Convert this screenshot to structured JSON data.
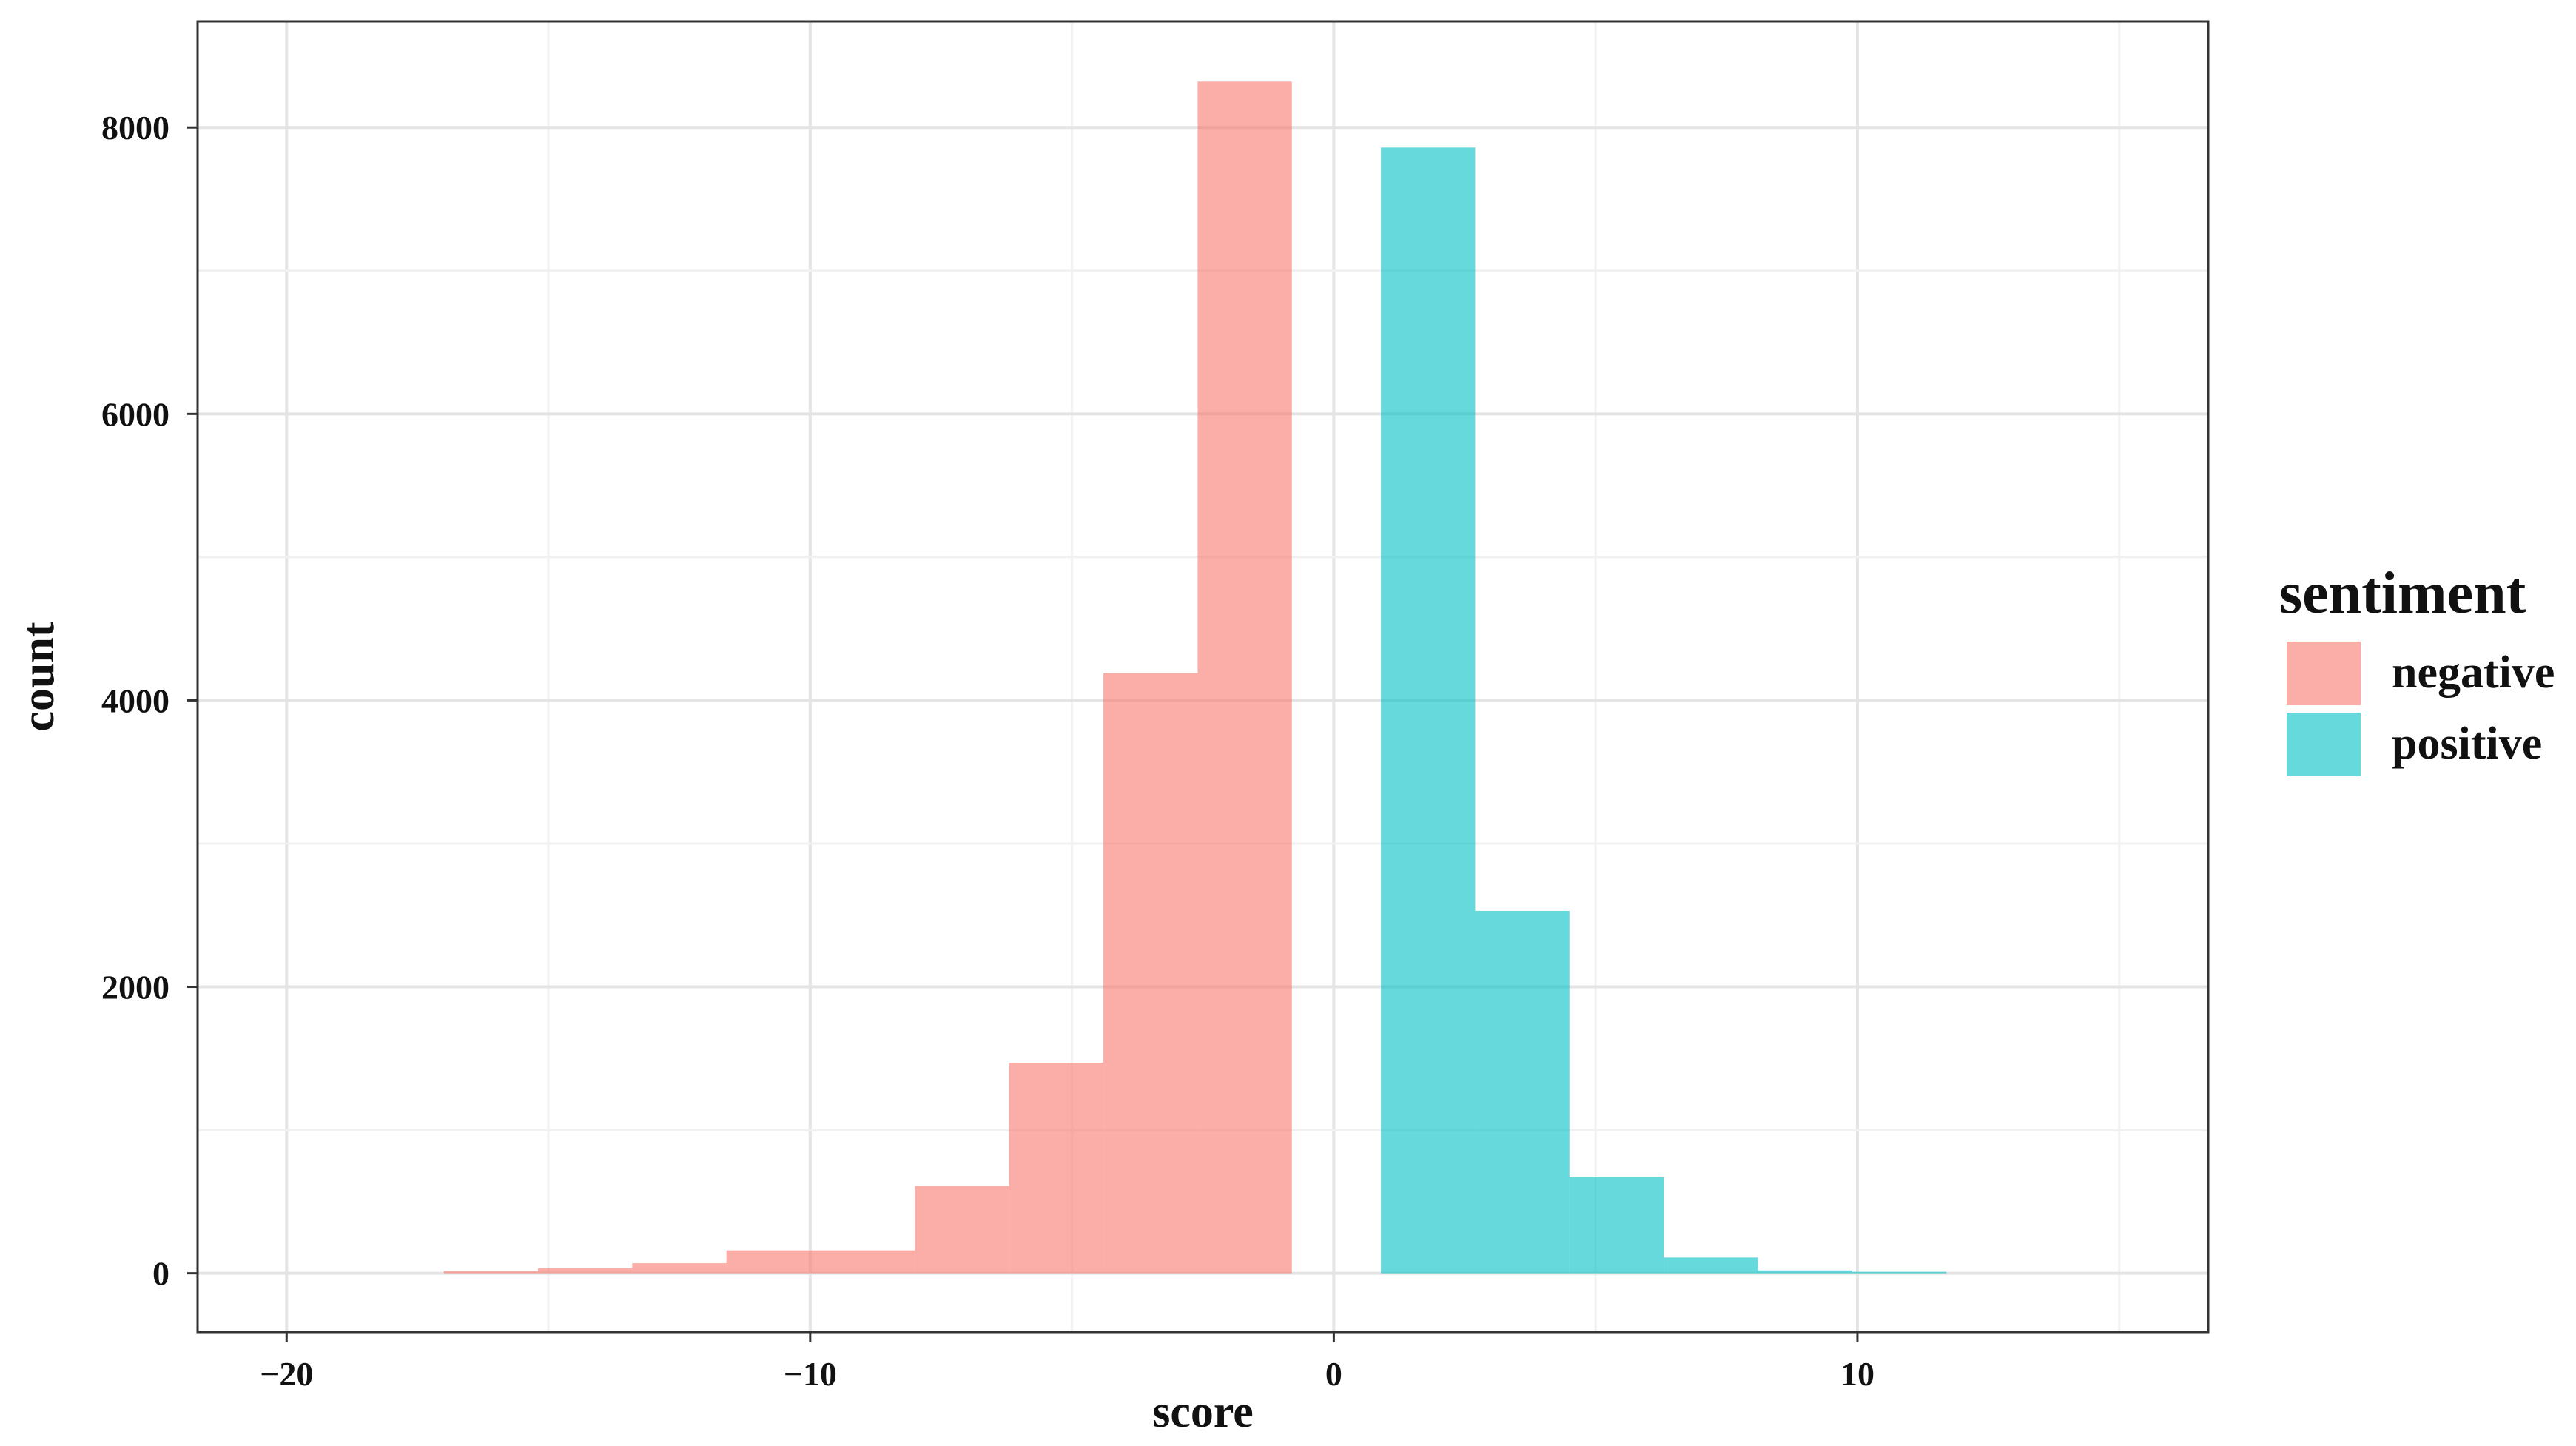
{
  "chart_data": {
    "type": "bar",
    "title": "",
    "xlabel": "score",
    "ylabel": "count",
    "xlim": [
      -21.7,
      16.7
    ],
    "ylim": [
      -410,
      8740
    ],
    "x_ticks": [
      -20,
      -10,
      0,
      10
    ],
    "x_tick_labels": [
      "−20",
      "−10",
      "0",
      "10"
    ],
    "y_ticks": [
      0,
      2000,
      4000,
      6000,
      8000
    ],
    "y_tick_labels": [
      "0",
      "2000",
      "4000",
      "6000",
      "8000"
    ],
    "grid": true,
    "legend": {
      "title": "sentiment",
      "placement": "right"
    },
    "series": [
      {
        "name": "negative",
        "color": "#F8766D",
        "bins": [
          {
            "x0": -17.0,
            "x1": -15.2,
            "count": 15
          },
          {
            "x0": -15.2,
            "x1": -13.4,
            "count": 35
          },
          {
            "x0": -13.4,
            "x1": -11.6,
            "count": 70
          },
          {
            "x0": -11.6,
            "x1": -9.8,
            "count": 160
          },
          {
            "x0": -9.8,
            "x1": -8.0,
            "count": 160
          },
          {
            "x0": -8.0,
            "x1": -6.2,
            "count": 610
          },
          {
            "x0": -6.2,
            "x1": -4.4,
            "count": 1470
          },
          {
            "x0": -4.4,
            "x1": -2.6,
            "count": 4190
          },
          {
            "x0": -2.6,
            "x1": -0.8,
            "count": 8320
          }
        ]
      },
      {
        "name": "positive",
        "color": "#00BFC4",
        "bins": [
          {
            "x0": 0.9,
            "x1": 2.7,
            "count": 7860
          },
          {
            "x0": 2.7,
            "x1": 4.5,
            "count": 2530
          },
          {
            "x0": 4.5,
            "x1": 6.3,
            "count": 670
          },
          {
            "x0": 6.3,
            "x1": 8.1,
            "count": 110
          },
          {
            "x0": 8.1,
            "x1": 9.9,
            "count": 20
          },
          {
            "x0": 9.9,
            "x1": 11.7,
            "count": 10
          }
        ]
      }
    ]
  }
}
